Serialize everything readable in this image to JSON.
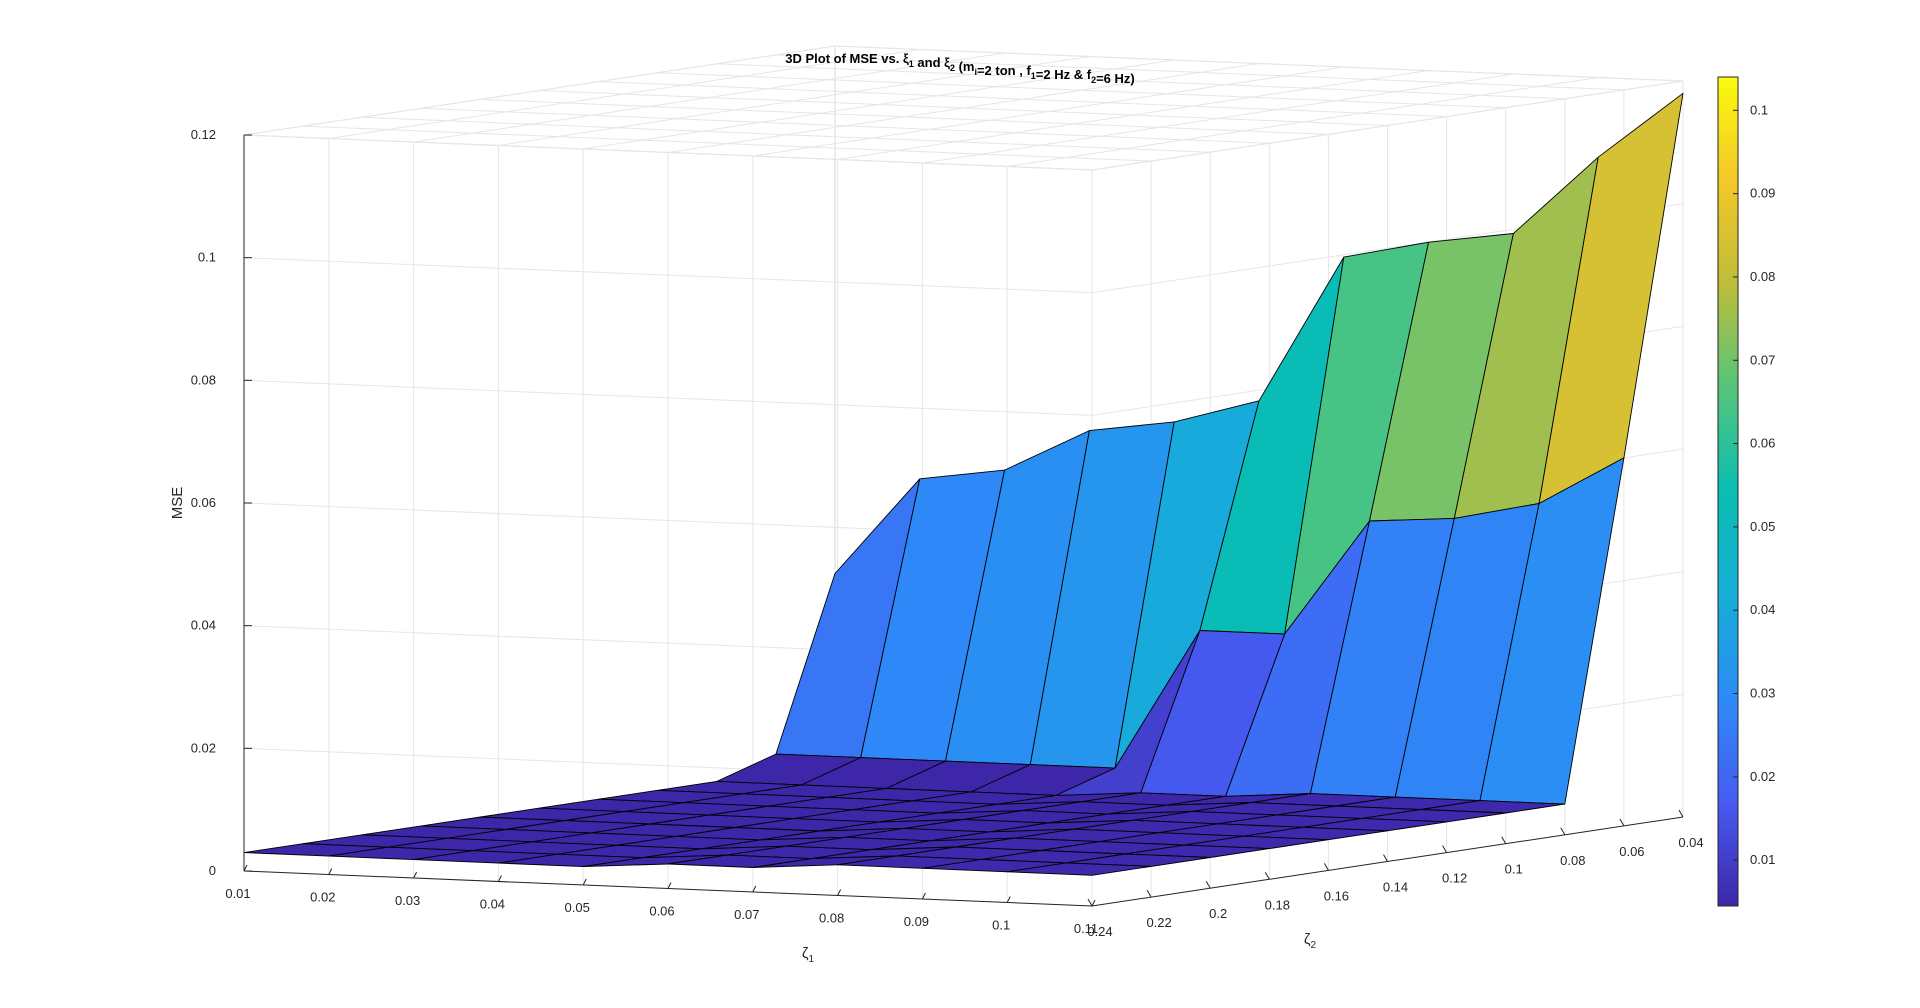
{
  "chart_data": {
    "type": "surface3d",
    "title": {
      "parts": [
        {
          "t": "3D Plot of MSE vs. ξ"
        },
        {
          "t": "1",
          "sub": true
        },
        {
          "t": " and ξ"
        },
        {
          "t": "2",
          "sub": true
        },
        {
          "t": " (m"
        },
        {
          "t": "i",
          "sub": true
        },
        {
          "t": "=2 ton , f"
        },
        {
          "t": "1",
          "sub": true
        },
        {
          "t": "=2 Hz & f"
        },
        {
          "t": "2",
          "sub": true
        },
        {
          "t": "=6 Hz)"
        }
      ]
    },
    "xlabel": {
      "base": "ζ",
      "sub": "1"
    },
    "ylabel": {
      "base": "ζ",
      "sub": "2"
    },
    "zlabel": "MSE",
    "x_ticks": [
      "0.01",
      "0.02",
      "0.03",
      "0.04",
      "0.05",
      "0.06",
      "0.07",
      "0.08",
      "0.09",
      "0.1",
      "0.11"
    ],
    "y_ticks": [
      "0.24",
      "0.22",
      "0.2",
      "0.18",
      "0.16",
      "0.14",
      "0.12",
      "0.1",
      "0.08",
      "0.06",
      "0.04"
    ],
    "z_ticks": [
      "0",
      "0.02",
      "0.04",
      "0.06",
      "0.08",
      "0.1",
      "0.12"
    ],
    "colorbar_ticks": [
      "0.01",
      "0.02",
      "0.03",
      "0.04",
      "0.05",
      "0.06",
      "0.07",
      "0.08",
      "0.09",
      "0.1"
    ],
    "colorbar_range": [
      0.0045,
      0.104
    ],
    "xlim": [
      0.01,
      0.11
    ],
    "ylim": [
      0.04,
      0.24
    ],
    "zlim": [
      0,
      0.12
    ],
    "grid": true,
    "colormap": "parula",
    "x": [
      0.01,
      0.02,
      0.03,
      0.04,
      0.05,
      0.06,
      0.07,
      0.08,
      0.09,
      0.1,
      0.11
    ],
    "y": [
      0.04,
      0.06,
      0.08,
      0.1,
      0.12,
      0.14,
      0.16,
      0.18,
      0.2,
      0.22,
      0.24
    ],
    "row_y_0.04": [
      0.034,
      0.05,
      0.052,
      0.059,
      0.061,
      0.065,
      0.089,
      0.092,
      0.094,
      0.107,
      0.118
    ],
    "row_y_0.06": [
      0.006,
      0.006,
      0.006,
      0.006,
      0.006,
      0.029,
      0.029,
      0.048,
      0.049,
      0.052,
      0.06
    ],
    "row_y_0.08": [
      0.003,
      0.003,
      0.003,
      0.003,
      0.003,
      0.004,
      0.004,
      0.005,
      0.005,
      0.005,
      0.005
    ],
    "row_y_0.10": [
      0.003,
      0.003,
      0.003,
      0.003,
      0.003,
      0.004,
      0.004,
      0.005,
      0.005,
      0.005,
      0.005
    ],
    "row_y_0.12": [
      0.003,
      0.003,
      0.003,
      0.003,
      0.003,
      0.004,
      0.004,
      0.005,
      0.005,
      0.005,
      0.005
    ],
    "row_y_0.14": [
      0.003,
      0.003,
      0.003,
      0.003,
      0.003,
      0.004,
      0.004,
      0.005,
      0.005,
      0.005,
      0.005
    ],
    "row_y_0.16": [
      0.003,
      0.003,
      0.003,
      0.003,
      0.003,
      0.004,
      0.004,
      0.005,
      0.005,
      0.005,
      0.005
    ],
    "row_y_0.18": [
      0.003,
      0.003,
      0.003,
      0.003,
      0.003,
      0.004,
      0.004,
      0.005,
      0.005,
      0.005,
      0.005
    ],
    "row_y_0.20": [
      0.003,
      0.003,
      0.003,
      0.003,
      0.003,
      0.004,
      0.004,
      0.005,
      0.005,
      0.005,
      0.005
    ],
    "row_y_0.22": [
      0.003,
      0.003,
      0.003,
      0.003,
      0.003,
      0.004,
      0.004,
      0.005,
      0.005,
      0.005,
      0.005
    ],
    "row_y_0.24": [
      0.003,
      0.003,
      0.003,
      0.003,
      0.003,
      0.004,
      0.004,
      0.005,
      0.005,
      0.005,
      0.005
    ]
  }
}
